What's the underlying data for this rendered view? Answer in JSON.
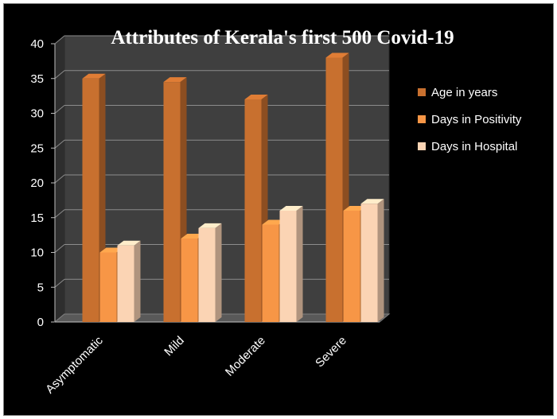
{
  "chart_data": {
    "type": "bar",
    "title": "Attributes of Kerala's first 500 Covid-19",
    "xlabel": "",
    "ylabel": "",
    "categories": [
      "Asymptomatic",
      "Mild",
      "Moderate",
      "Severe"
    ],
    "series": [
      {
        "name": "Age in years",
        "values": [
          35,
          34.5,
          32,
          38
        ],
        "color": "#C8702F"
      },
      {
        "name": "Days in Positivity",
        "values": [
          10,
          12,
          14,
          16
        ],
        "color": "#F79646"
      },
      {
        "name": "Days in Hospital",
        "values": [
          11,
          13.5,
          16,
          17
        ],
        "color": "#FBD4B4"
      }
    ],
    "ylim": [
      0,
      40
    ],
    "yticks": [
      0,
      5,
      10,
      15,
      20,
      25,
      30,
      35,
      40
    ],
    "grid": true,
    "legend": "right",
    "style": "3d-clustered-column"
  }
}
